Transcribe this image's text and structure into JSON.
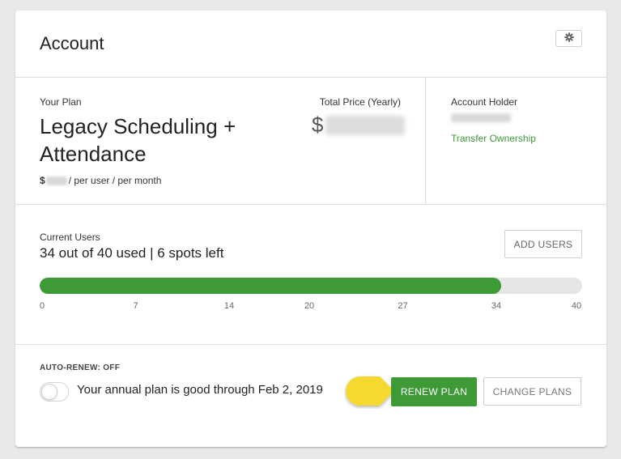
{
  "header": {
    "title": "Account",
    "settings_icon": "gear-icon"
  },
  "plan": {
    "label": "Your Plan",
    "name": "Legacy Scheduling + Attendance",
    "per_user_prefix": "$",
    "per_user_suffix": "/ per user / per month",
    "total_label": "Total Price (Yearly)",
    "total_currency": "$"
  },
  "holder": {
    "label": "Account Holder",
    "transfer_link": "Transfer Ownership"
  },
  "users": {
    "label": "Current Users",
    "count_text": "34 out of 40 used | 6 spots left",
    "used": 34,
    "total": 40,
    "add_button": "ADD USERS",
    "ticks": [
      "0",
      "7",
      "14",
      "20",
      "27",
      "34",
      "40"
    ]
  },
  "renew": {
    "auto_renew_label": "AUTO-RENEW: OFF",
    "auto_renew_on": false,
    "good_through": "Your annual plan is good through Feb 2, 2019",
    "renew_button": "RENEW PLAN",
    "change_button": "CHANGE PLANS"
  },
  "colors": {
    "accent": "#3d9a37",
    "pointer": "#f5d92f"
  }
}
